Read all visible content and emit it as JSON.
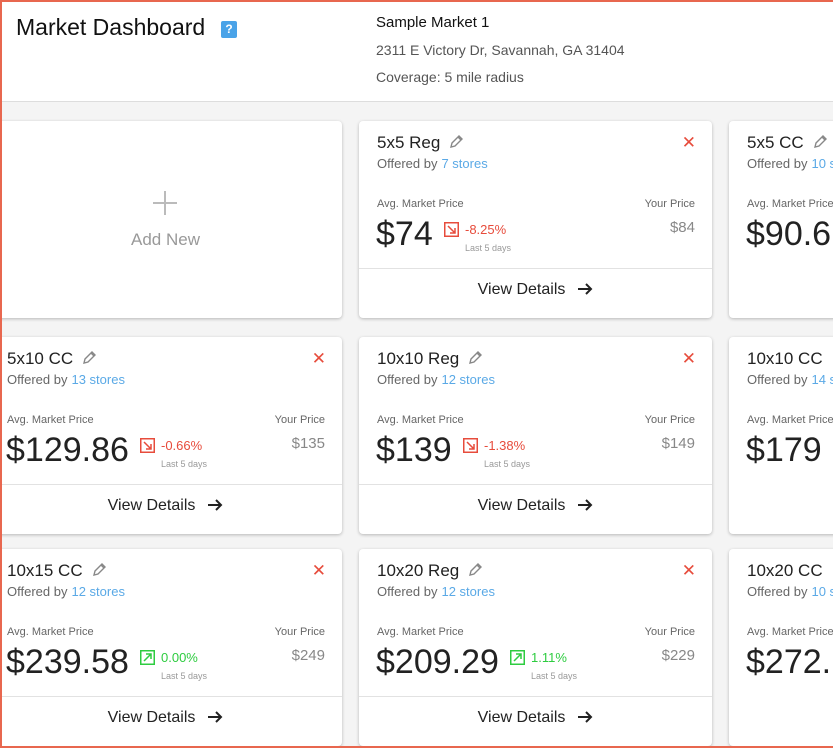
{
  "header": {
    "title": "Market Dashboard",
    "market_name": "Sample Market 1",
    "address": "2311 E Victory Dr, Savannah, GA 31404",
    "coverage": "Coverage: 5 mile radius"
  },
  "add_new": "Add New",
  "cards": [
    {
      "name": "5x5 Reg",
      "offered": "Offered by",
      "stores": "7 stores",
      "avg_label": "Avg. Market Price",
      "price": "$74",
      "change": "-8.25%",
      "period": "Last 5 days",
      "your_label": "Your Price",
      "your_price": "$84",
      "action": "View Details"
    },
    {
      "name": "5x5 CC",
      "offered": "Offered by",
      "stores": "10 s",
      "avg_label": "Avg. Market Price",
      "price": "$90.6"
    },
    {
      "name": "5x10 CC",
      "offered": "Offered by",
      "stores": "13 stores",
      "avg_label": "Avg. Market Price",
      "price": "$129.86",
      "change": "-0.66%",
      "period": "Last 5 days",
      "your_label": "Your Price",
      "your_price": "$135",
      "action": "View Details"
    },
    {
      "name": "10x10 Reg",
      "offered": "Offered by",
      "stores": "12 stores",
      "avg_label": "Avg. Market Price",
      "price": "$139",
      "change": "-1.38%",
      "period": "Last 5 days",
      "your_label": "Your Price",
      "your_price": "$149",
      "action": "View Details"
    },
    {
      "name": "10x10 CC",
      "offered": "Offered by",
      "stores": "14 s",
      "avg_label": "Avg. Market Price",
      "price": "$179"
    },
    {
      "name": "10x15 CC",
      "offered": "Offered by",
      "stores": "12 stores",
      "avg_label": "Avg. Market Price",
      "price": "$239.58",
      "change": "0.00%",
      "period": "Last 5 days",
      "your_label": "Your Price",
      "your_price": "$249",
      "action": "View Details"
    },
    {
      "name": "10x20 Reg",
      "offered": "Offered by",
      "stores": "12 stores",
      "avg_label": "Avg. Market Price",
      "price": "$209.29",
      "change": "1.11%",
      "period": "Last 5 days",
      "your_label": "Your Price",
      "your_price": "$229",
      "action": "View Details"
    },
    {
      "name": "10x20 CC",
      "offered": "Offered by",
      "stores": "10 s",
      "avg_label": "Avg. Market Price",
      "price": "$272."
    }
  ]
}
